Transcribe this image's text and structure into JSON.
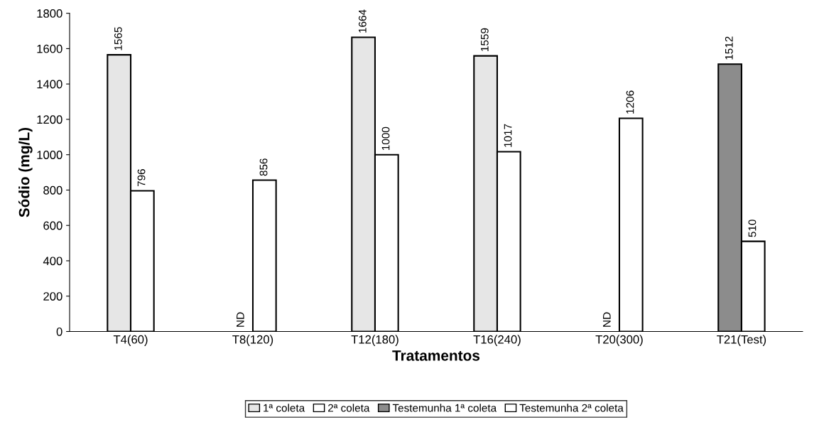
{
  "chart_data": {
    "type": "bar",
    "xlabel": "Tratamentos",
    "ylabel": "Sódio (mg/L)",
    "categories": [
      "T4(60)",
      "T8(120)",
      "T12(180)",
      "T16(240)",
      "T20(300)",
      "T21(Test)"
    ],
    "series": [
      {
        "name": "1ª coleta",
        "color": "#e6e6e6",
        "values": [
          1565,
          null,
          1664,
          1559,
          null,
          null
        ]
      },
      {
        "name": "2ª coleta",
        "color": "#ffffff",
        "values": [
          796,
          856,
          1000,
          1017,
          1206,
          null
        ]
      },
      {
        "name": "Testemunha 1ª coleta",
        "color": "#8c8c8c",
        "values": [
          null,
          null,
          null,
          null,
          null,
          1512
        ]
      },
      {
        "name": "Testemunha 2ª coleta",
        "color": "#ffffff",
        "values": [
          null,
          null,
          null,
          null,
          null,
          510
        ]
      }
    ],
    "annotations": [
      {
        "text": "ND",
        "x": "T8(120)",
        "y": 0
      },
      {
        "text": "ND",
        "x": "T20(300)",
        "y": 0
      }
    ],
    "ylim": [
      0,
      1800
    ],
    "yticks": [
      0,
      200,
      400,
      600,
      800,
      1000,
      1200,
      1400,
      1600,
      1800
    ],
    "data_labels": true,
    "grid": false,
    "legend": "bottom"
  }
}
